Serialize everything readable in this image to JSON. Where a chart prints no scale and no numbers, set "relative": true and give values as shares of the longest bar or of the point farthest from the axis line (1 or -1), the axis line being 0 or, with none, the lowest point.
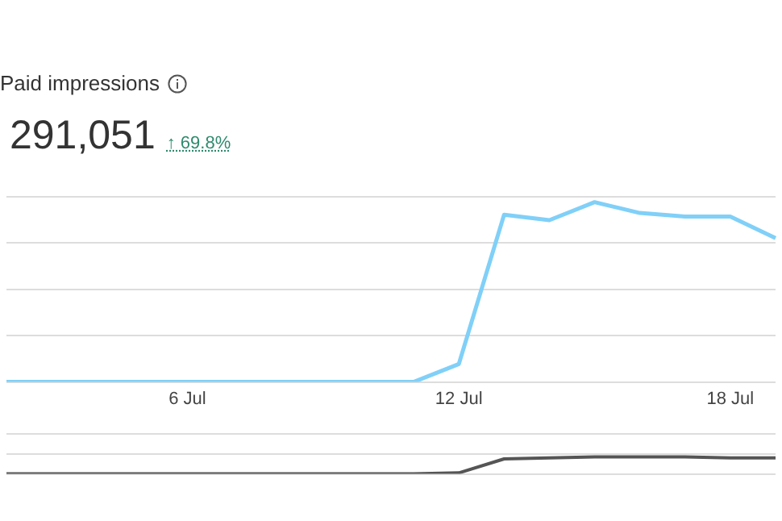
{
  "chart_data": [
    {
      "type": "line",
      "title": "Paid impressions",
      "subtitle": "291,051",
      "annotations": [
        "↑ 69.8%"
      ],
      "relative": true,
      "grid": "y",
      "marker": "none",
      "tick_labels": "x",
      "categories": [
        null,
        null,
        null,
        null,
        "6 Jul",
        null,
        null,
        null,
        null,
        null,
        "12 Jul",
        null,
        null,
        null,
        null,
        null,
        "18 Jul",
        null
      ],
      "series": [
        {
          "color": "#80d0f8",
          "values": [
            0,
            0,
            0,
            0,
            0,
            0,
            0,
            0,
            0,
            0,
            0.1,
            0.93,
            0.9,
            1,
            0.94,
            0.92,
            0.92,
            0.8
          ]
        }
      ]
    },
    {
      "type": "line",
      "relative": true,
      "grid": "y",
      "marker": "none",
      "categories": [
        null,
        null,
        null,
        null,
        null,
        null,
        null,
        null,
        null,
        null,
        null,
        null,
        null,
        null,
        null,
        null,
        null,
        null
      ],
      "series": [
        {
          "color": "#555555",
          "values": [
            0,
            0,
            0,
            0,
            0,
            0,
            0,
            0,
            0,
            0,
            0.06,
            0.88,
            0.94,
            1,
            1,
            1,
            0.94,
            0.94
          ]
        }
      ]
    }
  ]
}
